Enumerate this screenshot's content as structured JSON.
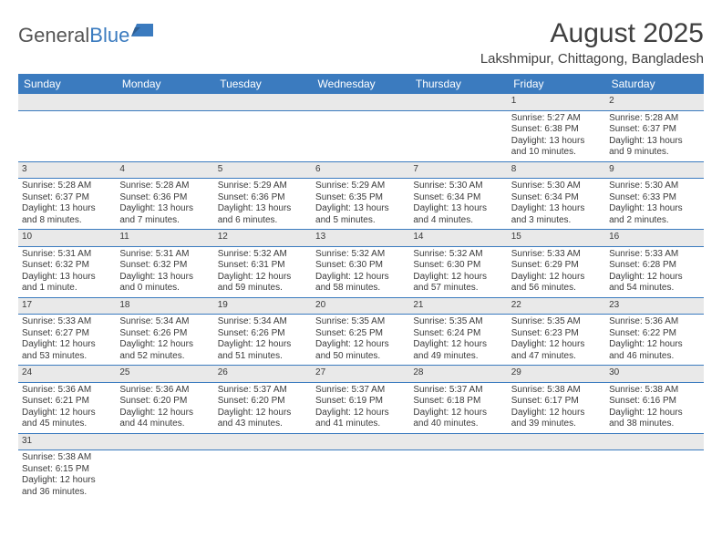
{
  "logo": {
    "text1": "General",
    "text2": "Blue"
  },
  "title": "August 2025",
  "location": "Lakshmipur, Chittagong, Bangladesh",
  "colors": {
    "header_bg": "#3b7bbf",
    "header_text": "#ffffff",
    "daynum_bg": "#e9e9e9",
    "border": "#3b7bbf",
    "body_text": "#3a3a3a"
  },
  "typography": {
    "title_fontsize": 30,
    "location_fontsize": 15,
    "dayheader_fontsize": 12,
    "cell_fontsize": 10
  },
  "day_headers": [
    "Sunday",
    "Monday",
    "Tuesday",
    "Wednesday",
    "Thursday",
    "Friday",
    "Saturday"
  ],
  "weeks": [
    {
      "nums": [
        "",
        "",
        "",
        "",
        "",
        "1",
        "2"
      ],
      "cells": [
        null,
        null,
        null,
        null,
        null,
        {
          "sunrise": "Sunrise: 5:27 AM",
          "sunset": "Sunset: 6:38 PM",
          "daylight": "Daylight: 13 hours and 10 minutes."
        },
        {
          "sunrise": "Sunrise: 5:28 AM",
          "sunset": "Sunset: 6:37 PM",
          "daylight": "Daylight: 13 hours and 9 minutes."
        }
      ]
    },
    {
      "nums": [
        "3",
        "4",
        "5",
        "6",
        "7",
        "8",
        "9"
      ],
      "cells": [
        {
          "sunrise": "Sunrise: 5:28 AM",
          "sunset": "Sunset: 6:37 PM",
          "daylight": "Daylight: 13 hours and 8 minutes."
        },
        {
          "sunrise": "Sunrise: 5:28 AM",
          "sunset": "Sunset: 6:36 PM",
          "daylight": "Daylight: 13 hours and 7 minutes."
        },
        {
          "sunrise": "Sunrise: 5:29 AM",
          "sunset": "Sunset: 6:36 PM",
          "daylight": "Daylight: 13 hours and 6 minutes."
        },
        {
          "sunrise": "Sunrise: 5:29 AM",
          "sunset": "Sunset: 6:35 PM",
          "daylight": "Daylight: 13 hours and 5 minutes."
        },
        {
          "sunrise": "Sunrise: 5:30 AM",
          "sunset": "Sunset: 6:34 PM",
          "daylight": "Daylight: 13 hours and 4 minutes."
        },
        {
          "sunrise": "Sunrise: 5:30 AM",
          "sunset": "Sunset: 6:34 PM",
          "daylight": "Daylight: 13 hours and 3 minutes."
        },
        {
          "sunrise": "Sunrise: 5:30 AM",
          "sunset": "Sunset: 6:33 PM",
          "daylight": "Daylight: 13 hours and 2 minutes."
        }
      ]
    },
    {
      "nums": [
        "10",
        "11",
        "12",
        "13",
        "14",
        "15",
        "16"
      ],
      "cells": [
        {
          "sunrise": "Sunrise: 5:31 AM",
          "sunset": "Sunset: 6:32 PM",
          "daylight": "Daylight: 13 hours and 1 minute."
        },
        {
          "sunrise": "Sunrise: 5:31 AM",
          "sunset": "Sunset: 6:32 PM",
          "daylight": "Daylight: 13 hours and 0 minutes."
        },
        {
          "sunrise": "Sunrise: 5:32 AM",
          "sunset": "Sunset: 6:31 PM",
          "daylight": "Daylight: 12 hours and 59 minutes."
        },
        {
          "sunrise": "Sunrise: 5:32 AM",
          "sunset": "Sunset: 6:30 PM",
          "daylight": "Daylight: 12 hours and 58 minutes."
        },
        {
          "sunrise": "Sunrise: 5:32 AM",
          "sunset": "Sunset: 6:30 PM",
          "daylight": "Daylight: 12 hours and 57 minutes."
        },
        {
          "sunrise": "Sunrise: 5:33 AM",
          "sunset": "Sunset: 6:29 PM",
          "daylight": "Daylight: 12 hours and 56 minutes."
        },
        {
          "sunrise": "Sunrise: 5:33 AM",
          "sunset": "Sunset: 6:28 PM",
          "daylight": "Daylight: 12 hours and 54 minutes."
        }
      ]
    },
    {
      "nums": [
        "17",
        "18",
        "19",
        "20",
        "21",
        "22",
        "23"
      ],
      "cells": [
        {
          "sunrise": "Sunrise: 5:33 AM",
          "sunset": "Sunset: 6:27 PM",
          "daylight": "Daylight: 12 hours and 53 minutes."
        },
        {
          "sunrise": "Sunrise: 5:34 AM",
          "sunset": "Sunset: 6:26 PM",
          "daylight": "Daylight: 12 hours and 52 minutes."
        },
        {
          "sunrise": "Sunrise: 5:34 AM",
          "sunset": "Sunset: 6:26 PM",
          "daylight": "Daylight: 12 hours and 51 minutes."
        },
        {
          "sunrise": "Sunrise: 5:35 AM",
          "sunset": "Sunset: 6:25 PM",
          "daylight": "Daylight: 12 hours and 50 minutes."
        },
        {
          "sunrise": "Sunrise: 5:35 AM",
          "sunset": "Sunset: 6:24 PM",
          "daylight": "Daylight: 12 hours and 49 minutes."
        },
        {
          "sunrise": "Sunrise: 5:35 AM",
          "sunset": "Sunset: 6:23 PM",
          "daylight": "Daylight: 12 hours and 47 minutes."
        },
        {
          "sunrise": "Sunrise: 5:36 AM",
          "sunset": "Sunset: 6:22 PM",
          "daylight": "Daylight: 12 hours and 46 minutes."
        }
      ]
    },
    {
      "nums": [
        "24",
        "25",
        "26",
        "27",
        "28",
        "29",
        "30"
      ],
      "cells": [
        {
          "sunrise": "Sunrise: 5:36 AM",
          "sunset": "Sunset: 6:21 PM",
          "daylight": "Daylight: 12 hours and 45 minutes."
        },
        {
          "sunrise": "Sunrise: 5:36 AM",
          "sunset": "Sunset: 6:20 PM",
          "daylight": "Daylight: 12 hours and 44 minutes."
        },
        {
          "sunrise": "Sunrise: 5:37 AM",
          "sunset": "Sunset: 6:20 PM",
          "daylight": "Daylight: 12 hours and 43 minutes."
        },
        {
          "sunrise": "Sunrise: 5:37 AM",
          "sunset": "Sunset: 6:19 PM",
          "daylight": "Daylight: 12 hours and 41 minutes."
        },
        {
          "sunrise": "Sunrise: 5:37 AM",
          "sunset": "Sunset: 6:18 PM",
          "daylight": "Daylight: 12 hours and 40 minutes."
        },
        {
          "sunrise": "Sunrise: 5:38 AM",
          "sunset": "Sunset: 6:17 PM",
          "daylight": "Daylight: 12 hours and 39 minutes."
        },
        {
          "sunrise": "Sunrise: 5:38 AM",
          "sunset": "Sunset: 6:16 PM",
          "daylight": "Daylight: 12 hours and 38 minutes."
        }
      ]
    },
    {
      "nums": [
        "31",
        "",
        "",
        "",
        "",
        "",
        ""
      ],
      "cells": [
        {
          "sunrise": "Sunrise: 5:38 AM",
          "sunset": "Sunset: 6:15 PM",
          "daylight": "Daylight: 12 hours and 36 minutes."
        },
        null,
        null,
        null,
        null,
        null,
        null
      ]
    }
  ]
}
